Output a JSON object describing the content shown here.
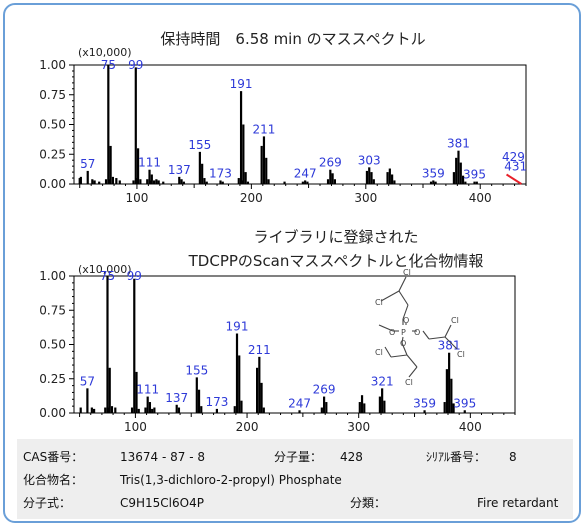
{
  "chart_data": [
    {
      "type": "bar",
      "title": "保持時間　6.58 min のマススペクトル",
      "unit_label": "(x10,000)",
      "xlim": [
        45,
        440
      ],
      "ylim": [
        0,
        1.0
      ],
      "x_ticks": [
        100,
        200,
        300,
        400
      ],
      "y_ticks": [
        "0.00",
        "0.25",
        "0.50",
        "0.75",
        "1.00"
      ],
      "y_tick_values": [
        0,
        0.25,
        0.5,
        0.75,
        1.0
      ],
      "peak_color": "#000000",
      "highlight_color": "#e8202a",
      "peaks": [
        {
          "x": 50,
          "y": 0.05
        },
        {
          "x": 51,
          "y": 0.06
        },
        {
          "x": 57,
          "y": 0.11
        },
        {
          "x": 61,
          "y": 0.04
        },
        {
          "x": 63,
          "y": 0.03
        },
        {
          "x": 67,
          "y": 0.02
        },
        {
          "x": 73,
          "y": 0.04
        },
        {
          "x": 75,
          "y": 1.0
        },
        {
          "x": 76,
          "y": 0.04
        },
        {
          "x": 77,
          "y": 0.32
        },
        {
          "x": 79,
          "y": 0.06
        },
        {
          "x": 82,
          "y": 0.05
        },
        {
          "x": 85,
          "y": 0.03
        },
        {
          "x": 97,
          "y": 0.03
        },
        {
          "x": 99,
          "y": 0.98
        },
        {
          "x": 100,
          "y": 0.05
        },
        {
          "x": 101,
          "y": 0.3
        },
        {
          "x": 103,
          "y": 0.04
        },
        {
          "x": 109,
          "y": 0.04
        },
        {
          "x": 111,
          "y": 0.12
        },
        {
          "x": 112,
          "y": 0.03
        },
        {
          "x": 113,
          "y": 0.08
        },
        {
          "x": 115,
          "y": 0.03
        },
        {
          "x": 117,
          "y": 0.04
        },
        {
          "x": 119,
          "y": 0.03
        },
        {
          "x": 123,
          "y": 0.02
        },
        {
          "x": 137,
          "y": 0.06
        },
        {
          "x": 139,
          "y": 0.04
        },
        {
          "x": 141,
          "y": 0.02
        },
        {
          "x": 155,
          "y": 0.27
        },
        {
          "x": 157,
          "y": 0.17
        },
        {
          "x": 159,
          "y": 0.05
        },
        {
          "x": 161,
          "y": 0.02
        },
        {
          "x": 173,
          "y": 0.03
        },
        {
          "x": 175,
          "y": 0.02
        },
        {
          "x": 189,
          "y": 0.05
        },
        {
          "x": 191,
          "y": 0.78
        },
        {
          "x": 192,
          "y": 0.03
        },
        {
          "x": 193,
          "y": 0.5
        },
        {
          "x": 195,
          "y": 0.1
        },
        {
          "x": 197,
          "y": 0.02
        },
        {
          "x": 209,
          "y": 0.32
        },
        {
          "x": 211,
          "y": 0.4
        },
        {
          "x": 213,
          "y": 0.22
        },
        {
          "x": 215,
          "y": 0.04
        },
        {
          "x": 229,
          "y": 0.02
        },
        {
          "x": 245,
          "y": 0.02
        },
        {
          "x": 247,
          "y": 0.03
        },
        {
          "x": 249,
          "y": 0.02
        },
        {
          "x": 267,
          "y": 0.04
        },
        {
          "x": 269,
          "y": 0.12
        },
        {
          "x": 271,
          "y": 0.09
        },
        {
          "x": 273,
          "y": 0.04
        },
        {
          "x": 301,
          "y": 0.11
        },
        {
          "x": 303,
          "y": 0.14
        },
        {
          "x": 305,
          "y": 0.1
        },
        {
          "x": 307,
          "y": 0.04
        },
        {
          "x": 319,
          "y": 0.1
        },
        {
          "x": 321,
          "y": 0.13
        },
        {
          "x": 323,
          "y": 0.08
        },
        {
          "x": 325,
          "y": 0.03
        },
        {
          "x": 357,
          "y": 0.02
        },
        {
          "x": 359,
          "y": 0.03
        },
        {
          "x": 361,
          "y": 0.02
        },
        {
          "x": 377,
          "y": 0.1
        },
        {
          "x": 379,
          "y": 0.22
        },
        {
          "x": 381,
          "y": 0.28
        },
        {
          "x": 383,
          "y": 0.18
        },
        {
          "x": 385,
          "y": 0.07
        },
        {
          "x": 387,
          "y": 0.02
        },
        {
          "x": 395,
          "y": 0.02
        },
        {
          "x": 397,
          "y": 0.02
        }
      ],
      "peak_labels": [
        {
          "x": 57,
          "y": 0.11,
          "label": "57"
        },
        {
          "x": 75,
          "y": 1.0,
          "label": "75"
        },
        {
          "x": 99,
          "y": 0.98,
          "label": "99"
        },
        {
          "x": 111,
          "y": 0.12,
          "label": "111"
        },
        {
          "x": 137,
          "y": 0.06,
          "label": "137"
        },
        {
          "x": 155,
          "y": 0.27,
          "label": "155"
        },
        {
          "x": 173,
          "y": 0.03,
          "label": "173"
        },
        {
          "x": 191,
          "y": 0.78,
          "label": "191"
        },
        {
          "x": 211,
          "y": 0.4,
          "label": "211"
        },
        {
          "x": 247,
          "y": 0.03,
          "label": "247"
        },
        {
          "x": 269,
          "y": 0.12,
          "label": "269"
        },
        {
          "x": 303,
          "y": 0.14,
          "label": "303"
        },
        {
          "x": 359,
          "y": 0.03,
          "label": "359"
        },
        {
          "x": 381,
          "y": 0.28,
          "label": "381"
        },
        {
          "x": 395,
          "y": 0.02,
          "label": "395"
        },
        {
          "x": 429,
          "y": 0.17,
          "label": "429"
        },
        {
          "x": 431,
          "y": 0.09,
          "label": "431"
        }
      ],
      "highlight_segment": {
        "x1": 423,
        "y1": 0.08,
        "x2": 436,
        "y2": 0.0
      }
    },
    {
      "type": "bar",
      "title_lines": [
        "ライブラリに登録された",
        "TDCPPのScanマススペクトルと化合物情報"
      ],
      "unit_label": "(x10,000)",
      "xlim": [
        45,
        440
      ],
      "ylim": [
        0,
        1.0
      ],
      "x_ticks": [
        100,
        200,
        300,
        400
      ],
      "y_ticks": [
        "0.00",
        "0.25",
        "0.50",
        "0.75",
        "1.00"
      ],
      "y_tick_values": [
        0,
        0.25,
        0.5,
        0.75,
        1.0
      ],
      "peak_color": "#000000",
      "structure_color": "#444444",
      "peaks": [
        {
          "x": 51,
          "y": 0.04
        },
        {
          "x": 57,
          "y": 0.18
        },
        {
          "x": 61,
          "y": 0.04
        },
        {
          "x": 63,
          "y": 0.03
        },
        {
          "x": 73,
          "y": 0.04
        },
        {
          "x": 75,
          "y": 1.0
        },
        {
          "x": 76,
          "y": 0.04
        },
        {
          "x": 77,
          "y": 0.33
        },
        {
          "x": 79,
          "y": 0.05
        },
        {
          "x": 82,
          "y": 0.04
        },
        {
          "x": 97,
          "y": 0.04
        },
        {
          "x": 99,
          "y": 0.98
        },
        {
          "x": 101,
          "y": 0.3
        },
        {
          "x": 103,
          "y": 0.03
        },
        {
          "x": 109,
          "y": 0.04
        },
        {
          "x": 111,
          "y": 0.12
        },
        {
          "x": 113,
          "y": 0.08
        },
        {
          "x": 115,
          "y": 0.03
        },
        {
          "x": 117,
          "y": 0.04
        },
        {
          "x": 137,
          "y": 0.06
        },
        {
          "x": 139,
          "y": 0.04
        },
        {
          "x": 155,
          "y": 0.26
        },
        {
          "x": 157,
          "y": 0.17
        },
        {
          "x": 159,
          "y": 0.05
        },
        {
          "x": 173,
          "y": 0.03
        },
        {
          "x": 189,
          "y": 0.05
        },
        {
          "x": 191,
          "y": 0.58
        },
        {
          "x": 193,
          "y": 0.42
        },
        {
          "x": 195,
          "y": 0.09
        },
        {
          "x": 209,
          "y": 0.33
        },
        {
          "x": 211,
          "y": 0.41
        },
        {
          "x": 213,
          "y": 0.22
        },
        {
          "x": 215,
          "y": 0.04
        },
        {
          "x": 247,
          "y": 0.02
        },
        {
          "x": 267,
          "y": 0.04
        },
        {
          "x": 269,
          "y": 0.12
        },
        {
          "x": 271,
          "y": 0.08
        },
        {
          "x": 301,
          "y": 0.08
        },
        {
          "x": 303,
          "y": 0.13
        },
        {
          "x": 305,
          "y": 0.07
        },
        {
          "x": 319,
          "y": 0.12
        },
        {
          "x": 321,
          "y": 0.18
        },
        {
          "x": 323,
          "y": 0.09
        },
        {
          "x": 359,
          "y": 0.02
        },
        {
          "x": 377,
          "y": 0.08
        },
        {
          "x": 379,
          "y": 0.32
        },
        {
          "x": 381,
          "y": 0.44
        },
        {
          "x": 383,
          "y": 0.25
        },
        {
          "x": 385,
          "y": 0.07
        },
        {
          "x": 395,
          "y": 0.02
        }
      ],
      "peak_labels": [
        {
          "x": 57,
          "y": 0.18,
          "label": "57"
        },
        {
          "x": 75,
          "y": 1.0,
          "label": "75"
        },
        {
          "x": 99,
          "y": 0.98,
          "label": "99"
        },
        {
          "x": 111,
          "y": 0.12,
          "label": "111"
        },
        {
          "x": 137,
          "y": 0.06,
          "label": "137"
        },
        {
          "x": 155,
          "y": 0.26,
          "label": "155"
        },
        {
          "x": 173,
          "y": 0.03,
          "label": "173"
        },
        {
          "x": 191,
          "y": 0.58,
          "label": "191"
        },
        {
          "x": 211,
          "y": 0.41,
          "label": "211"
        },
        {
          "x": 247,
          "y": 0.02,
          "label": "247"
        },
        {
          "x": 269,
          "y": 0.12,
          "label": "269"
        },
        {
          "x": 321,
          "y": 0.18,
          "label": "321"
        },
        {
          "x": 359,
          "y": 0.02,
          "label": "359"
        },
        {
          "x": 381,
          "y": 0.44,
          "label": "381"
        },
        {
          "x": 395,
          "y": 0.02,
          "label": "395"
        }
      ],
      "structure_atom_labels": [
        "Cl",
        "Cl",
        "Cl",
        "Cl",
        "Cl",
        "Cl",
        "P",
        "O",
        "O",
        "O",
        "O"
      ]
    }
  ],
  "info_panel": {
    "background": "#eeeeee",
    "cas_label": "CAS番号：",
    "cas_value": "13674 - 87 - 8",
    "mw_label": "分子量：",
    "mw_value": "428",
    "serial_label": "ｼﾘｱﾙ番号：",
    "serial_value": "8",
    "name_label": "化合物名：",
    "name_value": "Tris(1,3-dichloro-2-propyl) Phosphate",
    "formula_label": "分子式：",
    "formula_value": "C9H15Cl6O4P",
    "class_label": "分類：",
    "class_value": "Fire retardant"
  }
}
